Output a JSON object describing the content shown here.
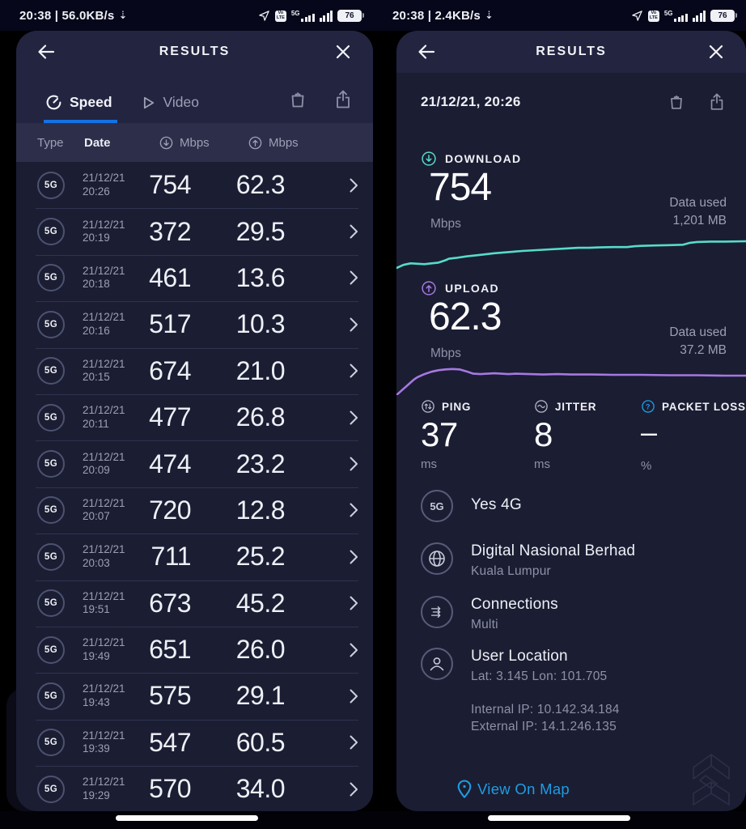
{
  "colors": {
    "accent_blue": "#1372e4",
    "link_blue": "#1e9de2",
    "download_teal": "#56dcc9",
    "upload_purple": "#a678e0",
    "panel_bg": "#1b1d33"
  },
  "status_left": {
    "time_and_speed": "20:38 | 56.0KB/s",
    "network": "5G",
    "volte_line1": "Vo",
    "volte_line2": "LTE",
    "battery": "76"
  },
  "status_right": {
    "time_and_speed": "20:38 | 2.4KB/s",
    "network": "5G",
    "volte_line1": "Vo",
    "volte_line2": "LTE",
    "battery": "76"
  },
  "left_panel": {
    "title": "RESULTS",
    "tabs": {
      "speed": "Speed",
      "video": "Video"
    },
    "table": {
      "col_type": "Type",
      "col_date": "Date",
      "col_down": "Mbps",
      "col_up": "Mbps",
      "rows": [
        {
          "type": "5G",
          "date": "21/12/21",
          "time": "20:26",
          "down": "754",
          "up": "62.3"
        },
        {
          "type": "5G",
          "date": "21/12/21",
          "time": "20:19",
          "down": "372",
          "up": "29.5"
        },
        {
          "type": "5G",
          "date": "21/12/21",
          "time": "20:18",
          "down": "461",
          "up": "13.6"
        },
        {
          "type": "5G",
          "date": "21/12/21",
          "time": "20:16",
          "down": "517",
          "up": "10.3"
        },
        {
          "type": "5G",
          "date": "21/12/21",
          "time": "20:15",
          "down": "674",
          "up": "21.0"
        },
        {
          "type": "5G",
          "date": "21/12/21",
          "time": "20:11",
          "down": "477",
          "up": "26.8"
        },
        {
          "type": "5G",
          "date": "21/12/21",
          "time": "20:09",
          "down": "474",
          "up": "23.2"
        },
        {
          "type": "5G",
          "date": "21/12/21",
          "time": "20:07",
          "down": "720",
          "up": "12.8"
        },
        {
          "type": "5G",
          "date": "21/12/21",
          "time": "20:03",
          "down": "711",
          "up": "25.2"
        },
        {
          "type": "5G",
          "date": "21/12/21",
          "time": "19:51",
          "down": "673",
          "up": "45.2"
        },
        {
          "type": "5G",
          "date": "21/12/21",
          "time": "19:49",
          "down": "651",
          "up": "26.0"
        },
        {
          "type": "5G",
          "date": "21/12/21",
          "time": "19:43",
          "down": "575",
          "up": "29.1"
        },
        {
          "type": "5G",
          "date": "21/12/21",
          "time": "19:39",
          "down": "547",
          "up": "60.5"
        },
        {
          "type": "5G",
          "date": "21/12/21",
          "time": "19:29",
          "down": "570",
          "up": "34.0"
        }
      ]
    }
  },
  "right_panel": {
    "title": "RESULTS",
    "result_date": "21/12/21, 20:26",
    "download": {
      "label": "DOWNLOAD",
      "value": "754",
      "unit": "Mbps",
      "data_used_label": "Data used",
      "data_used_value": "1,201 MB"
    },
    "upload": {
      "label": "UPLOAD",
      "value": "62.3",
      "unit": "Mbps",
      "data_used_label": "Data used",
      "data_used_value": "37.2 MB"
    },
    "metrics": {
      "ping_label": "PING",
      "ping_value": "37",
      "ping_unit": "ms",
      "jitter_label": "JITTER",
      "jitter_value": "8",
      "jitter_unit": "ms",
      "loss_label": "PACKET LOSS",
      "loss_value": "–",
      "loss_unit": "%"
    },
    "info": {
      "network_badge": "5G",
      "network_name": "Yes 4G",
      "isp_name": "Digital Nasional Berhad",
      "isp_location": "Kuala Lumpur",
      "connections_label": "Connections",
      "connections_value": "Multi",
      "location_label": "User Location",
      "location_coords": "Lat: 3.145 Lon: 101.705",
      "internal_ip": "Internal IP: 10.142.34.184",
      "external_ip": "External IP: 14.1.246.135"
    },
    "map_link": "View On Map",
    "graphs": {
      "download_points": [
        [
          0,
          96
        ],
        [
          2,
          88
        ],
        [
          4,
          84
        ],
        [
          6,
          85
        ],
        [
          8,
          86
        ],
        [
          10,
          84
        ],
        [
          12,
          82
        ],
        [
          14,
          76
        ],
        [
          15,
          72
        ],
        [
          17,
          70
        ],
        [
          20,
          66
        ],
        [
          24,
          62
        ],
        [
          28,
          58
        ],
        [
          32,
          55
        ],
        [
          36,
          52
        ],
        [
          40,
          50
        ],
        [
          44,
          48
        ],
        [
          48,
          46
        ],
        [
          52,
          44
        ],
        [
          55,
          44
        ],
        [
          58,
          43
        ],
        [
          62,
          42
        ],
        [
          66,
          42
        ],
        [
          68,
          40
        ],
        [
          70,
          39
        ],
        [
          74,
          38
        ],
        [
          78,
          37
        ],
        [
          82,
          36
        ],
        [
          84,
          31
        ],
        [
          86,
          29
        ],
        [
          90,
          28
        ],
        [
          94,
          28
        ],
        [
          100,
          27
        ]
      ],
      "upload_points": [
        [
          0,
          100
        ],
        [
          1,
          92
        ],
        [
          2,
          84
        ],
        [
          3,
          76
        ],
        [
          4,
          68
        ],
        [
          5,
          60
        ],
        [
          6,
          54
        ],
        [
          8,
          46
        ],
        [
          10,
          40
        ],
        [
          12,
          36
        ],
        [
          14,
          34
        ],
        [
          16,
          33
        ],
        [
          18,
          34
        ],
        [
          20,
          39
        ],
        [
          22,
          45
        ],
        [
          24,
          46
        ],
        [
          26,
          45
        ],
        [
          28,
          44
        ],
        [
          30,
          45
        ],
        [
          32,
          46
        ],
        [
          34,
          45
        ],
        [
          38,
          46
        ],
        [
          42,
          47
        ],
        [
          46,
          46
        ],
        [
          50,
          47
        ],
        [
          56,
          47
        ],
        [
          62,
          48
        ],
        [
          70,
          48
        ],
        [
          78,
          49
        ],
        [
          86,
          49
        ],
        [
          94,
          50
        ],
        [
          100,
          50
        ]
      ]
    }
  }
}
